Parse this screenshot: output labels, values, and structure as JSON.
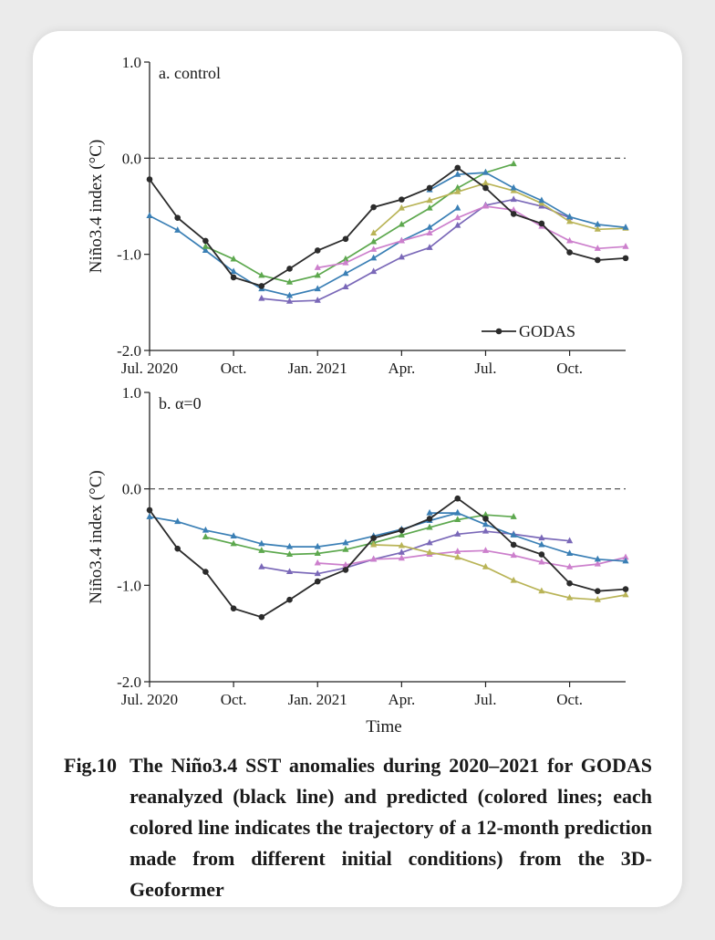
{
  "caption": {
    "label": "Fig.10",
    "text": "The Niño3.4 SST anomalies during 2020–2021 for GODAS reanalyzed (black line) and predicted (colored lines; each colored line indicates the trajectory of a 12-month prediction made from different initial conditions) from the 3D-Geoformer"
  },
  "chart_data": [
    {
      "type": "line",
      "panel_label": "a. control",
      "ylabel": "Niño3.4 index (°C)",
      "xlabel": "",
      "ylim": [
        -2.0,
        1.0
      ],
      "yticks": [
        "1.0",
        "0.0",
        "-1.0",
        "-2.0"
      ],
      "xlim": [
        0,
        17
      ],
      "xticks": [
        {
          "x": 0,
          "label": "Jul. 2020"
        },
        {
          "x": 3,
          "label": "Oct."
        },
        {
          "x": 6,
          "label": "Jan. 2021"
        },
        {
          "x": 9,
          "label": "Apr."
        },
        {
          "x": 12,
          "label": "Jul."
        },
        {
          "x": 15,
          "label": "Oct."
        }
      ],
      "legend": {
        "entries": [
          {
            "label": "GODAS",
            "color": "#2b2b2b"
          }
        ],
        "placement": "bottom-right"
      },
      "colors": {
        "godas": "#2b2b2b",
        "green": "#5da84e",
        "blue": "#3a7fb5",
        "purple": "#7a68b8",
        "pink": "#cc7fcc",
        "olive": "#b9b457"
      },
      "series": [
        {
          "name": "GODAS",
          "color": "#2b2b2b",
          "x": [
            0,
            1,
            2,
            3,
            4,
            5,
            6,
            7,
            8,
            9,
            10,
            11,
            12,
            13,
            14,
            15,
            16,
            17
          ],
          "values": [
            -0.22,
            -0.62,
            -0.86,
            -1.24,
            -1.33,
            -1.15,
            -0.96,
            -0.84,
            -0.51,
            -0.43,
            -0.31,
            -0.1,
            -0.31,
            -0.58,
            -0.68,
            -0.98,
            -1.06,
            -1.04
          ]
        },
        {
          "color": "#3a7fb5",
          "x": [
            0,
            1,
            2,
            3,
            4,
            5,
            6,
            7,
            8,
            9,
            10,
            11,
            12,
            13,
            14,
            15,
            16,
            17
          ],
          "values": [
            -0.6,
            -0.75,
            -0.96,
            -1.18,
            -1.36,
            -1.43,
            -1.36,
            -1.2,
            -1.04,
            -0.86,
            -0.72,
            -0.52,
            null,
            null,
            null,
            null,
            null,
            null
          ]
        },
        {
          "color": "#5da84e",
          "x": [
            2,
            3,
            4,
            5,
            6,
            7,
            8,
            9,
            10,
            11,
            12,
            13
          ],
          "values": [
            -0.92,
            -1.05,
            -1.22,
            -1.29,
            -1.22,
            -1.05,
            -0.87,
            -0.69,
            -0.52,
            -0.31,
            -0.15,
            -0.06
          ]
        },
        {
          "color": "#7a68b8",
          "x": [
            4,
            5,
            6,
            7,
            8,
            9,
            10,
            11,
            12,
            13,
            14,
            15
          ],
          "values": [
            -1.46,
            -1.49,
            -1.48,
            -1.34,
            -1.18,
            -1.03,
            -0.93,
            -0.7,
            -0.49,
            -0.43,
            -0.5,
            -0.62
          ]
        },
        {
          "color": "#cc7fcc",
          "x": [
            6,
            7,
            8,
            9,
            10,
            11,
            12,
            13,
            14,
            15,
            16,
            17
          ],
          "values": [
            -1.14,
            -1.09,
            -0.95,
            -0.86,
            -0.78,
            -0.62,
            -0.5,
            -0.54,
            -0.71,
            -0.86,
            -0.94,
            -0.92
          ]
        },
        {
          "color": "#b9b457",
          "x": [
            8,
            9,
            10,
            11,
            12,
            13,
            14,
            15,
            16,
            17
          ],
          "values": [
            -0.78,
            -0.52,
            -0.44,
            -0.35,
            -0.26,
            -0.34,
            -0.47,
            -0.66,
            -0.74,
            -0.73
          ]
        },
        {
          "color": "#3a7fb5",
          "x": [
            10,
            11,
            12,
            13,
            14,
            15,
            16,
            17
          ],
          "values": [
            -0.33,
            -0.17,
            -0.15,
            -0.31,
            -0.44,
            -0.61,
            -0.69,
            -0.72
          ]
        }
      ]
    },
    {
      "type": "line",
      "panel_label": "b. α=0",
      "ylabel": "Niño3.4 index (°C)",
      "xlabel": "Time",
      "ylim": [
        -2.0,
        1.0
      ],
      "yticks": [
        "1.0",
        "0.0",
        "-1.0",
        "-2.0"
      ],
      "xlim": [
        0,
        17
      ],
      "xticks": [
        {
          "x": 0,
          "label": "Jul. 2020"
        },
        {
          "x": 3,
          "label": "Oct."
        },
        {
          "x": 6,
          "label": "Jan. 2021"
        },
        {
          "x": 9,
          "label": "Apr."
        },
        {
          "x": 12,
          "label": "Jul."
        },
        {
          "x": 15,
          "label": "Oct."
        }
      ],
      "series": [
        {
          "name": "GODAS",
          "color": "#2b2b2b",
          "x": [
            0,
            1,
            2,
            3,
            4,
            5,
            6,
            7,
            8,
            9,
            10,
            11,
            12,
            13,
            14,
            15,
            16,
            17
          ],
          "values": [
            -0.22,
            -0.62,
            -0.86,
            -1.24,
            -1.33,
            -1.15,
            -0.96,
            -0.84,
            -0.51,
            -0.43,
            -0.31,
            -0.1,
            -0.31,
            -0.58,
            -0.68,
            -0.98,
            -1.06,
            -1.04
          ]
        },
        {
          "color": "#3a7fb5",
          "x": [
            0,
            1,
            2,
            3,
            4,
            5,
            6,
            7,
            8,
            9,
            10,
            11
          ],
          "values": [
            -0.29,
            -0.34,
            -0.43,
            -0.49,
            -0.57,
            -0.6,
            -0.6,
            -0.56,
            -0.49,
            -0.42,
            -0.33,
            -0.25
          ]
        },
        {
          "color": "#5da84e",
          "x": [
            2,
            3,
            4,
            5,
            6,
            7,
            8,
            9,
            10,
            11,
            12,
            13
          ],
          "values": [
            -0.5,
            -0.57,
            -0.64,
            -0.68,
            -0.67,
            -0.63,
            -0.56,
            -0.48,
            -0.4,
            -0.32,
            -0.27,
            -0.29
          ]
        },
        {
          "color": "#7a68b8",
          "x": [
            4,
            5,
            6,
            7,
            8,
            9,
            10,
            11,
            12,
            13,
            14,
            15
          ],
          "values": [
            -0.81,
            -0.86,
            -0.88,
            -0.82,
            -0.73,
            -0.66,
            -0.56,
            -0.47,
            -0.44,
            -0.47,
            -0.51,
            -0.54
          ]
        },
        {
          "color": "#cc7fcc",
          "x": [
            6,
            7,
            8,
            9,
            10,
            11,
            12,
            13,
            14,
            15,
            16,
            17
          ],
          "values": [
            -0.77,
            -0.79,
            -0.73,
            -0.72,
            -0.68,
            -0.65,
            -0.64,
            -0.69,
            -0.76,
            -0.81,
            -0.78,
            -0.71
          ]
        },
        {
          "color": "#b9b457",
          "x": [
            8,
            9,
            10,
            11,
            12,
            13,
            14,
            15,
            16,
            17
          ],
          "values": [
            -0.58,
            -0.59,
            -0.66,
            -0.71,
            -0.81,
            -0.95,
            -1.06,
            -1.13,
            -1.15,
            -1.1
          ]
        },
        {
          "color": "#3a7fb5",
          "x": [
            10,
            11,
            12,
            13,
            14,
            15,
            16,
            17
          ],
          "values": [
            -0.25,
            -0.25,
            -0.37,
            -0.48,
            -0.58,
            -0.67,
            -0.73,
            -0.75
          ]
        }
      ]
    }
  ]
}
